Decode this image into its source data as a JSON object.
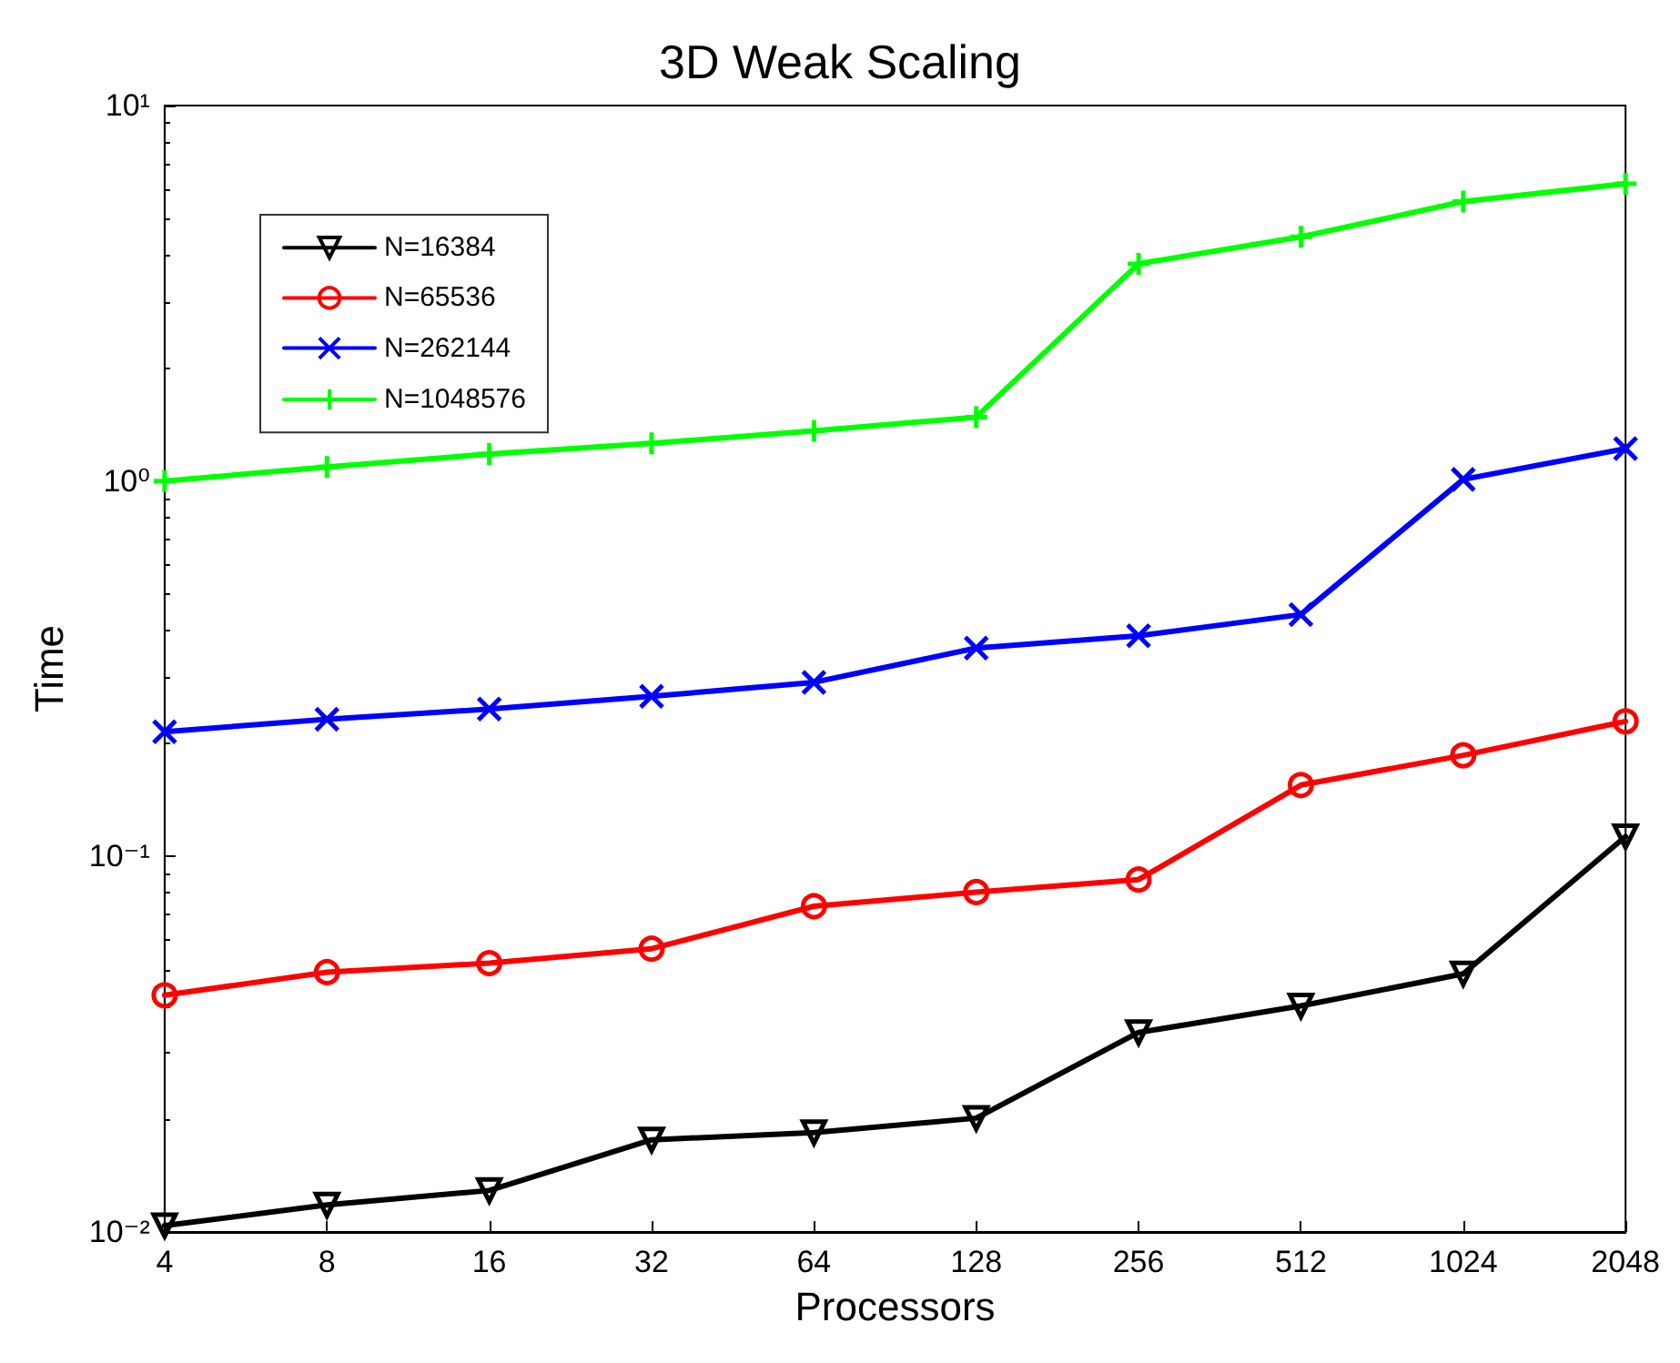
{
  "chart_data": {
    "type": "line",
    "title": "3D Weak Scaling",
    "xlabel": "Processors",
    "ylabel": "Time",
    "x": [
      4,
      8,
      16,
      32,
      64,
      128,
      256,
      512,
      1024,
      2048
    ],
    "xlim": [
      4,
      2048
    ],
    "xticks": [
      4,
      8,
      16,
      32,
      64,
      128,
      256,
      512,
      1024,
      2048
    ],
    "ylim": [
      0.01,
      10
    ],
    "yticks": [
      {
        "value": 0.01,
        "label": "10⁻²"
      },
      {
        "value": 0.1,
        "label": "10⁻¹"
      },
      {
        "value": 1,
        "label": "10⁰"
      },
      {
        "value": 10,
        "label": "10¹"
      }
    ],
    "log": "xy",
    "grid": false,
    "legend": "top left",
    "series": [
      {
        "name": "N=16384",
        "color": "#000000",
        "marker": "triangle",
        "values": [
          0.0104,
          0.0118,
          0.0129,
          0.0176,
          0.0184,
          0.0201,
          0.034,
          0.04,
          0.0487,
          0.113
        ]
      },
      {
        "name": "N=65536",
        "color": "#ff0000",
        "marker": "circle",
        "values": [
          0.0427,
          0.0492,
          0.052,
          0.0568,
          0.0737,
          0.0804,
          0.0868,
          0.155,
          0.186,
          0.229
        ]
      },
      {
        "name": "N=262144",
        "color": "#0000ff",
        "marker": "cross",
        "values": [
          0.215,
          0.232,
          0.247,
          0.267,
          0.291,
          0.359,
          0.387,
          0.441,
          1.01,
          1.22
        ]
      },
      {
        "name": "N=1048576",
        "color": "#00ff00",
        "marker": "plus",
        "values": [
          1.0,
          1.09,
          1.18,
          1.26,
          1.36,
          1.48,
          3.79,
          4.47,
          5.55,
          6.19
        ]
      }
    ]
  }
}
